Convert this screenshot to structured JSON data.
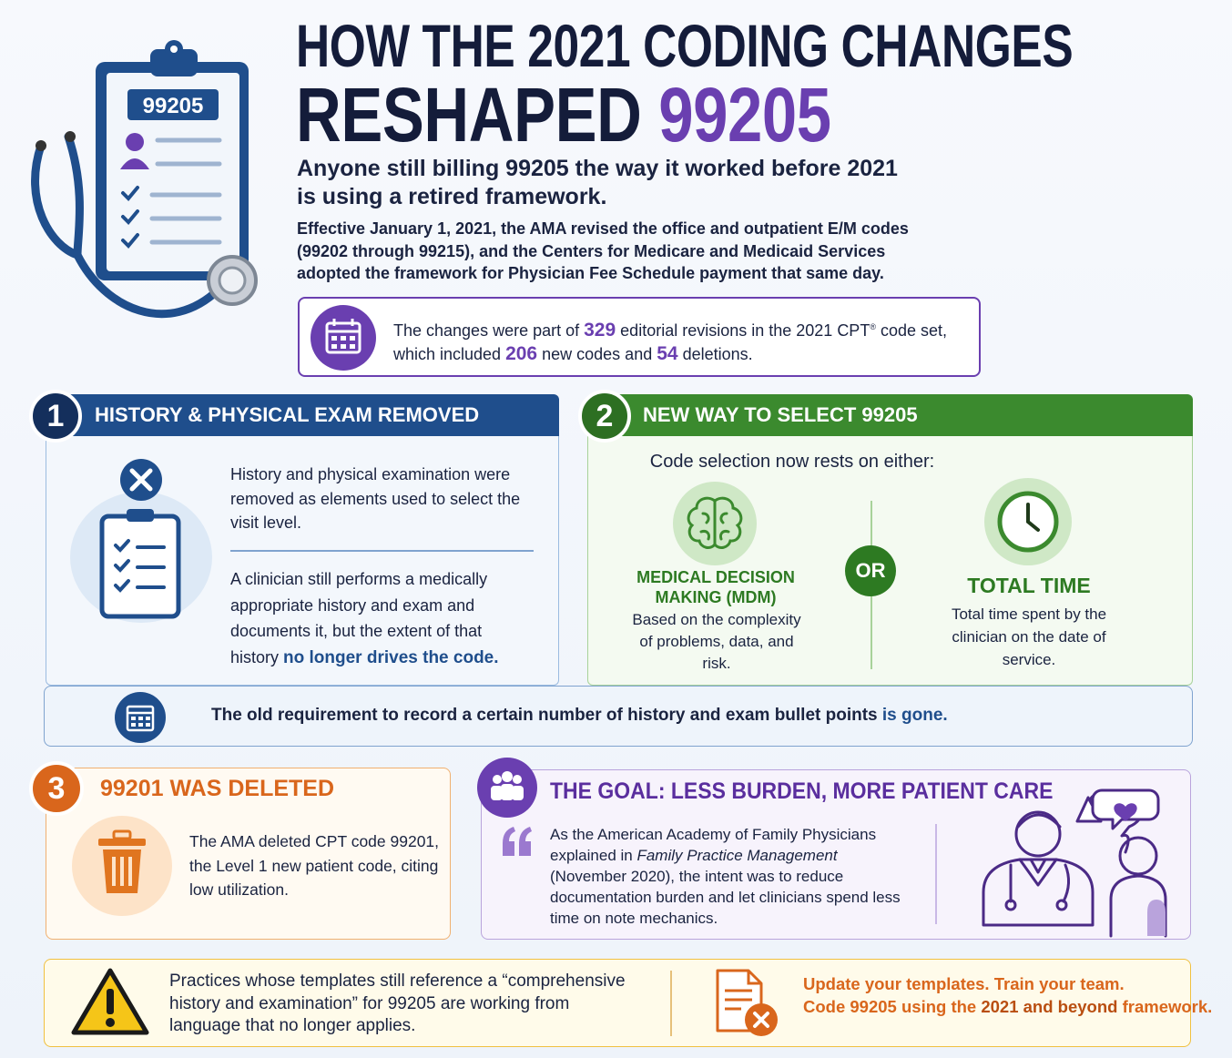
{
  "header": {
    "clipboard_code": "99205",
    "title_line1": "HOW THE 2021 CODING CHANGES",
    "title_line2": "RESHAPED",
    "title_highlight": "99205",
    "subtitle": [
      "Anyone still billing 99205 the way it worked before 2021",
      "is using a retired framework."
    ],
    "intro": [
      "Effective January 1, 2021, the AMA revised the office and outpatient E/M codes",
      "(99202 through 99215), and the Centers for Medicare and Medicaid Services",
      "adopted the framework for Physician Fee Schedule payment that same day."
    ]
  },
  "stats": {
    "line1": [
      "The changes were part of ",
      "329",
      " editorial revisions in the 2021 CPT",
      "®",
      " code set,"
    ],
    "line2": [
      "which included ",
      "206",
      " new codes and ",
      "54",
      " deletions."
    ]
  },
  "section1": {
    "number": "1",
    "title": "HISTORY & PHYSICAL EXAM REMOVED",
    "paragraph1": "History and physical examination were removed as elements used to select the visit level.",
    "paragraph2": [
      "A clinician still performs a medically appropriate history and exam and documents it, but the extent of that history ",
      "no longer drives the code."
    ]
  },
  "section2": {
    "number": "2",
    "title": "NEW WAY TO SELECT 99205",
    "lead": "Code selection now rests on either:",
    "options": [
      {
        "title": "MEDICAL DECISION MAKING (MDM)",
        "text": "Based on the complexity of problems, data, and risk."
      },
      {
        "title": "TOTAL TIME",
        "text": "Total time spent by the clinician on the date of service."
      }
    ],
    "separator": "OR"
  },
  "banner": [
    "The old requirement to record a certain number of history and exam bullet points ",
    "is gone."
  ],
  "section3": {
    "number": "3",
    "title": "99201 WAS DELETED",
    "text": "The AMA deleted CPT code 99201, the Level 1 new patient code, citing low utilization."
  },
  "section4": {
    "title": "THE GOAL: LESS BURDEN, MORE PATIENT CARE",
    "text": [
      "As the American Academy of Family Physicians explained in ",
      "Family Practice Management",
      " (November 2020), the intent was to reduce documentation burden and let clinicians spend less time on note mechanics."
    ]
  },
  "warning": {
    "text": "Practices whose templates still reference a “comprehensive history and examination” for 99205 are working from language that no longer applies.",
    "action": [
      "Update your templates. Train your team.",
      "Code 99205 using the ",
      "2021 and beyond",
      " framework."
    ]
  }
}
